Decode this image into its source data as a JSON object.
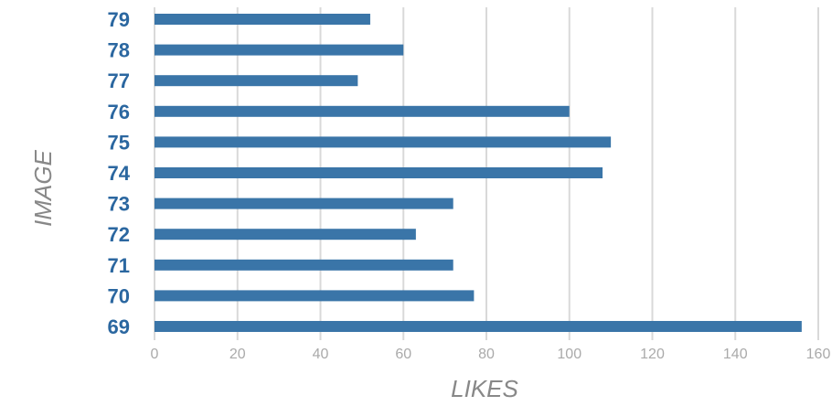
{
  "chart_data": {
    "type": "bar",
    "orientation": "horizontal",
    "categories": [
      "79",
      "78",
      "77",
      "76",
      "75",
      "74",
      "73",
      "72",
      "71",
      "70",
      "69"
    ],
    "values": [
      52,
      60,
      49,
      100,
      110,
      108,
      72,
      63,
      72,
      77,
      156
    ],
    "xlabel": "LIKES",
    "ylabel": "IMAGE",
    "xlim": [
      0,
      160
    ],
    "xticks": [
      0,
      20,
      40,
      60,
      80,
      100,
      120,
      140,
      160
    ],
    "grid": true,
    "bar_color": "#3a75a8",
    "category_label_color": "#2b67a0"
  }
}
